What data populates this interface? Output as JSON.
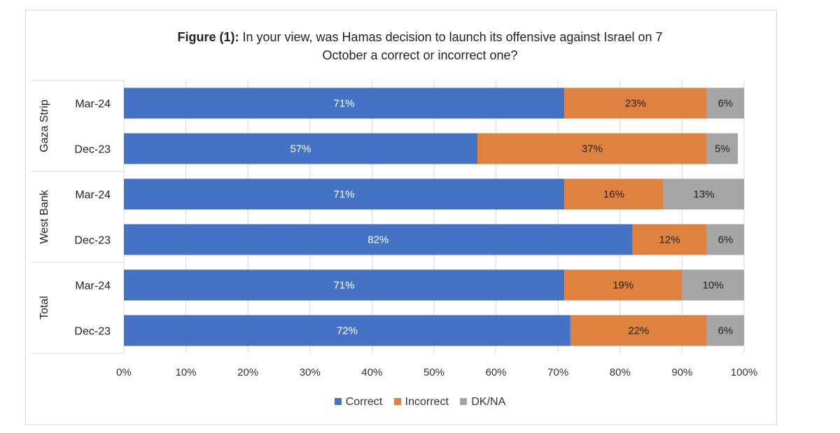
{
  "chart_data": {
    "type": "bar",
    "orientation": "horizontal-stacked-percent",
    "title_bold": "Figure (1):",
    "title_rest": " In your view,  was Hamas decision to launch its offensive against Israel on 7",
    "title_line2": "October a correct or incorrect one?",
    "groups": [
      {
        "name": "Gaza Strip",
        "rows": [
          {
            "label": "Mar-24",
            "values": [
              71,
              23,
              6
            ]
          },
          {
            "label": "Dec-23",
            "values": [
              57,
              37,
              5
            ]
          }
        ]
      },
      {
        "name": "West Bank",
        "rows": [
          {
            "label": "Mar-24",
            "values": [
              71,
              16,
              13
            ]
          },
          {
            "label": "Dec-23",
            "values": [
              82,
              12,
              6
            ]
          }
        ]
      },
      {
        "name": "Total",
        "rows": [
          {
            "label": "Mar-24",
            "values": [
              71,
              19,
              10
            ]
          },
          {
            "label": "Dec-23",
            "values": [
              72,
              22,
              6
            ]
          }
        ]
      }
    ],
    "series": [
      {
        "name": "Correct",
        "color": "#4472c4",
        "label_color": "#ffffff"
      },
      {
        "name": "Incorrect",
        "color": "#e0823f",
        "label_color": "#222222"
      },
      {
        "name": "DK/NA",
        "color": "#a5a5a5",
        "label_color": "#222222"
      }
    ],
    "xlim": [
      0,
      100
    ],
    "xticks": [
      "0%",
      "10%",
      "20%",
      "30%",
      "40%",
      "50%",
      "60%",
      "70%",
      "80%",
      "90%",
      "100%"
    ],
    "grid": true,
    "legend_position": "bottom"
  }
}
